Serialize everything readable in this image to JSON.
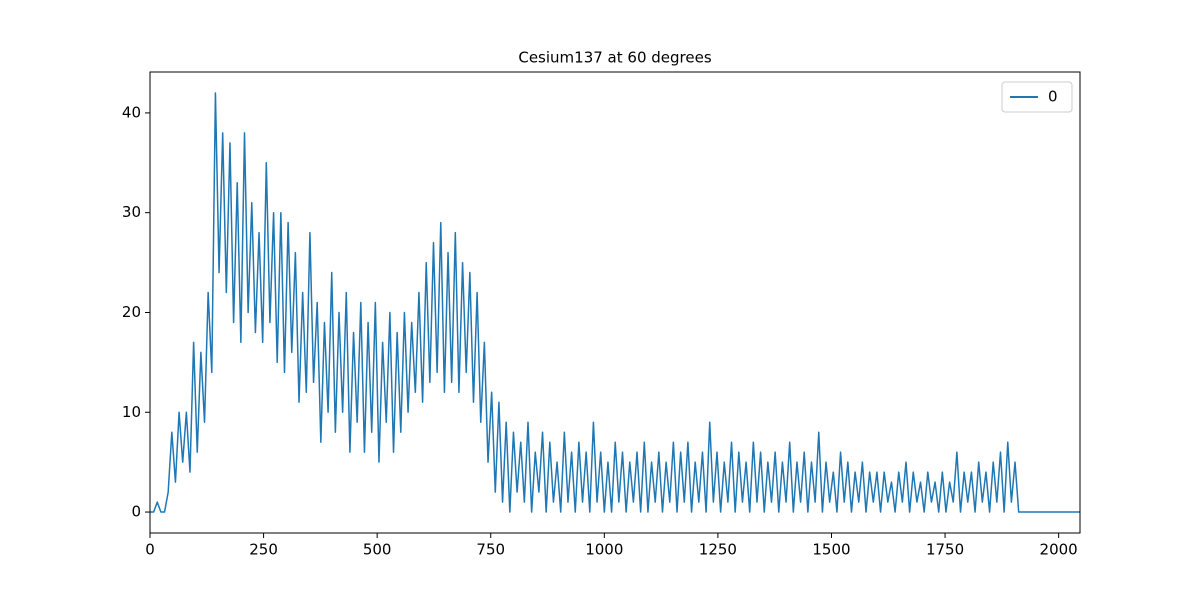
{
  "chart_data": {
    "type": "line",
    "title": "Cesium137 at 60 degrees",
    "x": [
      0,
      8,
      16,
      24,
      32,
      40,
      48,
      56,
      64,
      72,
      80,
      88,
      96,
      104,
      112,
      120,
      128,
      136,
      144,
      152,
      160,
      168,
      176,
      184,
      192,
      200,
      208,
      216,
      224,
      232,
      240,
      248,
      256,
      264,
      272,
      280,
      288,
      296,
      304,
      312,
      320,
      328,
      336,
      344,
      352,
      360,
      368,
      376,
      384,
      392,
      400,
      408,
      416,
      424,
      432,
      440,
      448,
      456,
      464,
      472,
      480,
      488,
      496,
      504,
      512,
      520,
      528,
      536,
      544,
      552,
      560,
      568,
      576,
      584,
      592,
      600,
      608,
      616,
      624,
      632,
      640,
      648,
      656,
      664,
      672,
      680,
      688,
      696,
      704,
      712,
      720,
      728,
      736,
      744,
      752,
      760,
      768,
      776,
      784,
      792,
      800,
      808,
      816,
      824,
      832,
      840,
      848,
      856,
      864,
      872,
      880,
      888,
      896,
      904,
      912,
      920,
      928,
      936,
      944,
      952,
      960,
      968,
      976,
      984,
      992,
      1000,
      1008,
      1016,
      1024,
      1032,
      1040,
      1048,
      1056,
      1064,
      1072,
      1080,
      1088,
      1096,
      1104,
      1112,
      1120,
      1128,
      1136,
      1144,
      1152,
      1160,
      1168,
      1176,
      1184,
      1192,
      1200,
      1208,
      1216,
      1224,
      1232,
      1240,
      1248,
      1256,
      1264,
      1272,
      1280,
      1288,
      1296,
      1304,
      1312,
      1320,
      1328,
      1336,
      1344,
      1352,
      1360,
      1368,
      1376,
      1384,
      1392,
      1400,
      1408,
      1416,
      1424,
      1432,
      1440,
      1448,
      1456,
      1464,
      1472,
      1480,
      1488,
      1496,
      1504,
      1512,
      1520,
      1528,
      1536,
      1544,
      1552,
      1560,
      1568,
      1576,
      1584,
      1592,
      1600,
      1608,
      1616,
      1624,
      1632,
      1640,
      1648,
      1656,
      1664,
      1672,
      1680,
      1688,
      1696,
      1704,
      1712,
      1720,
      1728,
      1736,
      1744,
      1752,
      1760,
      1768,
      1776,
      1784,
      1792,
      1800,
      1808,
      1816,
      1824,
      1832,
      1840,
      1848,
      1856,
      1864,
      1872,
      1880,
      1888,
      1896,
      1904,
      1912,
      1920,
      1928,
      1936,
      1944,
      1952,
      1960,
      1968,
      1976,
      1984,
      1992,
      2000,
      2008,
      2016,
      2024,
      2032,
      2040,
      2047
    ],
    "series": [
      {
        "name": "0",
        "color": "#1f77b4",
        "values": [
          0,
          0,
          1,
          0,
          0,
          2,
          8,
          3,
          10,
          5,
          10,
          4,
          17,
          6,
          16,
          9,
          22,
          14,
          42,
          24,
          38,
          22,
          37,
          19,
          33,
          17,
          38,
          20,
          31,
          18,
          28,
          17,
          35,
          19,
          30,
          15,
          30,
          14,
          29,
          16,
          26,
          11,
          22,
          12,
          28,
          13,
          21,
          7,
          19,
          10,
          24,
          8,
          20,
          10,
          22,
          6,
          18,
          9,
          21,
          6,
          19,
          8,
          21,
          5,
          17,
          9,
          20,
          6,
          18,
          8,
          20,
          10,
          19,
          12,
          22,
          11,
          25,
          13,
          27,
          14,
          29,
          12,
          26,
          13,
          28,
          12,
          25,
          14,
          24,
          11,
          22,
          9,
          17,
          5,
          12,
          2,
          11,
          1,
          9,
          0,
          8,
          2,
          7,
          1,
          9,
          0,
          6,
          2,
          8,
          0,
          7,
          1,
          5,
          0,
          8,
          1,
          6,
          0,
          7,
          1,
          6,
          0,
          9,
          1,
          6,
          0,
          5,
          0,
          7,
          1,
          6,
          0,
          5,
          1,
          6,
          0,
          7,
          0,
          5,
          1,
          6,
          0,
          5,
          1,
          7,
          0,
          6,
          1,
          7,
          0,
          5,
          1,
          6,
          0,
          9,
          1,
          6,
          0,
          5,
          1,
          7,
          0,
          6,
          1,
          5,
          0,
          7,
          1,
          6,
          0,
          5,
          1,
          6,
          0,
          5,
          1,
          7,
          0,
          5,
          1,
          6,
          0,
          5,
          1,
          8,
          0,
          5,
          1,
          4,
          0,
          6,
          1,
          5,
          0,
          4,
          1,
          5,
          0,
          4,
          1,
          4,
          0,
          4,
          1,
          3,
          0,
          4,
          1,
          5,
          0,
          4,
          1,
          3,
          0,
          4,
          1,
          3,
          0,
          4,
          0,
          3,
          1,
          6,
          0,
          4,
          1,
          4,
          0,
          5,
          1,
          4,
          0,
          5,
          1,
          6,
          0,
          7,
          1,
          5,
          0,
          0,
          0,
          0,
          0,
          0,
          0,
          0,
          0,
          0,
          0,
          0,
          0,
          0,
          0,
          0,
          0,
          0
        ]
      }
    ],
    "xlim": [
      0,
      2047
    ],
    "ylim": [
      -2.1,
      44.1
    ],
    "xticks": [
      0,
      250,
      500,
      750,
      1000,
      1250,
      1500,
      1750,
      2000
    ],
    "yticks": [
      0,
      10,
      20,
      30,
      40
    ],
    "legend": "upper right"
  }
}
